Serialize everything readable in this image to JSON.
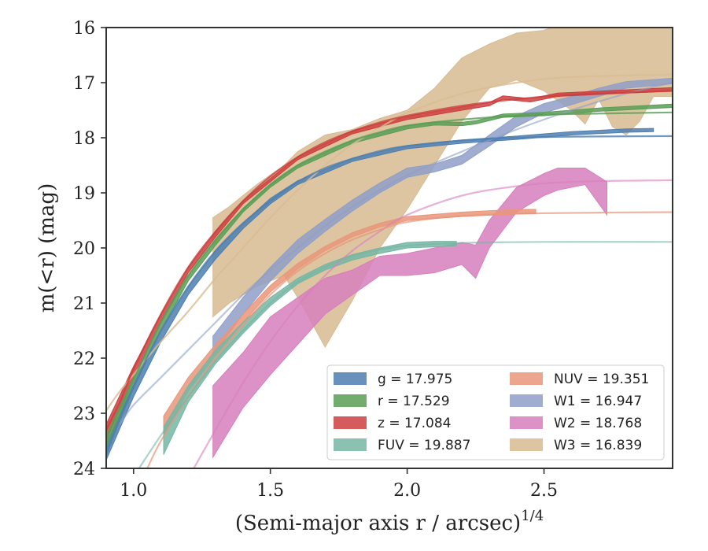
{
  "chart_data": {
    "type": "line",
    "xlabel": "(Semi-major axis r / arcsec)",
    "xlabel_superscript": "1/4",
    "ylabel": "m(<r) (mag)",
    "xlim": [
      0.9,
      2.97
    ],
    "ylim": [
      24,
      16
    ],
    "y_inverted": true,
    "grid": false,
    "legend_position": "lower-right",
    "x_ticks": [
      1.0,
      1.5,
      2.0,
      2.5
    ],
    "x_tick_labels": [
      "1.0",
      "1.5",
      "2.0",
      "2.5"
    ],
    "y_ticks": [
      16,
      17,
      18,
      19,
      20,
      21,
      22,
      23,
      24
    ],
    "y_tick_labels": [
      "16",
      "17",
      "18",
      "19",
      "20",
      "21",
      "22",
      "23",
      "24"
    ],
    "series": [
      {
        "name": "g",
        "legend": "g = 17.975",
        "color": "#4e7fb0",
        "model_alpha": 0.8,
        "model": [
          [
            0.9,
            23.75
          ],
          [
            0.95,
            23.1
          ],
          [
            1.0,
            22.5
          ],
          [
            1.1,
            21.5
          ],
          [
            1.2,
            20.7
          ],
          [
            1.3,
            20.05
          ],
          [
            1.4,
            19.55
          ],
          [
            1.5,
            19.15
          ],
          [
            1.6,
            18.8
          ],
          [
            1.7,
            18.55
          ],
          [
            1.8,
            18.38
          ],
          [
            1.9,
            18.24
          ],
          [
            2.0,
            18.15
          ],
          [
            2.2,
            18.05
          ],
          [
            2.4,
            18.0
          ],
          [
            2.6,
            17.98
          ],
          [
            2.97,
            17.97
          ]
        ],
        "data_band": [
          [
            0.9,
            23.85,
            23.55
          ],
          [
            1.0,
            22.7,
            22.5
          ],
          [
            1.1,
            21.7,
            21.5
          ],
          [
            1.2,
            20.85,
            20.7
          ],
          [
            1.3,
            20.2,
            20.05
          ],
          [
            1.4,
            19.65,
            19.55
          ],
          [
            1.5,
            19.2,
            19.1
          ],
          [
            1.6,
            18.85,
            18.78
          ],
          [
            1.8,
            18.43,
            18.37
          ],
          [
            2.0,
            18.2,
            18.14
          ],
          [
            2.2,
            18.1,
            18.04
          ],
          [
            2.4,
            18.03,
            17.97
          ],
          [
            2.6,
            17.95,
            17.89
          ],
          [
            2.8,
            17.9,
            17.84
          ],
          [
            2.9,
            17.89,
            17.83
          ]
        ]
      },
      {
        "name": "r",
        "legend": "r = 17.529",
        "color": "#5a9e56",
        "model_alpha": 0.8,
        "model": [
          [
            0.9,
            23.6
          ],
          [
            0.95,
            23.0
          ],
          [
            1.0,
            22.4
          ],
          [
            1.1,
            21.35
          ],
          [
            1.2,
            20.5
          ],
          [
            1.3,
            19.85
          ],
          [
            1.4,
            19.3
          ],
          [
            1.5,
            18.85
          ],
          [
            1.6,
            18.5
          ],
          [
            1.7,
            18.25
          ],
          [
            1.8,
            18.05
          ],
          [
            1.9,
            17.9
          ],
          [
            2.0,
            17.78
          ],
          [
            2.2,
            17.67
          ],
          [
            2.4,
            17.6
          ],
          [
            2.6,
            17.57
          ],
          [
            2.97,
            17.54
          ]
        ],
        "data_band": [
          [
            0.9,
            23.7,
            23.4
          ],
          [
            1.0,
            22.55,
            22.35
          ],
          [
            1.1,
            21.5,
            21.35
          ],
          [
            1.2,
            20.6,
            20.5
          ],
          [
            1.3,
            19.95,
            19.85
          ],
          [
            1.4,
            19.35,
            19.28
          ],
          [
            1.5,
            18.9,
            18.84
          ],
          [
            1.6,
            18.55,
            18.49
          ],
          [
            1.8,
            18.1,
            18.04
          ],
          [
            2.0,
            17.84,
            17.78
          ],
          [
            2.1,
            17.77,
            17.71
          ],
          [
            2.2,
            17.78,
            17.72
          ],
          [
            2.25,
            17.75,
            17.69
          ],
          [
            2.35,
            17.63,
            17.57
          ],
          [
            2.5,
            17.6,
            17.54
          ],
          [
            2.7,
            17.52,
            17.46
          ],
          [
            2.97,
            17.45,
            17.39
          ]
        ]
      },
      {
        "name": "z",
        "legend": "z = 17.084",
        "color": "#cc3f3f",
        "model_alpha": 0.8,
        "model": [
          [
            0.9,
            23.3
          ],
          [
            0.95,
            22.8
          ],
          [
            1.0,
            22.2
          ],
          [
            1.1,
            21.2
          ],
          [
            1.2,
            20.35
          ],
          [
            1.3,
            19.7
          ],
          [
            1.4,
            19.15
          ],
          [
            1.5,
            18.7
          ],
          [
            1.6,
            18.35
          ],
          [
            1.7,
            18.08
          ],
          [
            1.8,
            17.88
          ],
          [
            1.9,
            17.72
          ],
          [
            2.0,
            17.6
          ],
          [
            2.2,
            17.42
          ],
          [
            2.4,
            17.3
          ],
          [
            2.6,
            17.22
          ],
          [
            2.97,
            17.15
          ]
        ],
        "data_band": [
          [
            0.9,
            23.5,
            23.2
          ],
          [
            1.0,
            22.35,
            22.15
          ],
          [
            1.1,
            21.35,
            21.2
          ],
          [
            1.2,
            20.45,
            20.35
          ],
          [
            1.3,
            19.8,
            19.7
          ],
          [
            1.4,
            19.2,
            19.14
          ],
          [
            1.6,
            18.4,
            18.34
          ],
          [
            1.8,
            17.93,
            17.87
          ],
          [
            2.0,
            17.67,
            17.61
          ],
          [
            2.2,
            17.5,
            17.44
          ],
          [
            2.3,
            17.42,
            17.36
          ],
          [
            2.35,
            17.3,
            17.24
          ],
          [
            2.45,
            17.35,
            17.29
          ],
          [
            2.55,
            17.25,
            17.19
          ],
          [
            2.97,
            17.15,
            17.09
          ]
        ]
      },
      {
        "name": "FUV",
        "legend": "FUV = 19.887",
        "color": "#76b6a3",
        "model_alpha": 0.6,
        "model": [
          [
            1.02,
            24.0
          ],
          [
            1.1,
            23.4
          ],
          [
            1.2,
            22.7
          ],
          [
            1.3,
            22.05
          ],
          [
            1.4,
            21.5
          ],
          [
            1.5,
            21.0
          ],
          [
            1.6,
            20.62
          ],
          [
            1.7,
            20.35
          ],
          [
            1.8,
            20.15
          ],
          [
            1.9,
            20.03
          ],
          [
            2.0,
            19.96
          ],
          [
            2.2,
            19.91
          ],
          [
            2.5,
            19.89
          ],
          [
            2.97,
            19.89
          ]
        ],
        "data_band": [
          [
            1.11,
            23.75,
            23.25
          ],
          [
            1.2,
            22.8,
            22.5
          ],
          [
            1.3,
            22.1,
            21.85
          ],
          [
            1.4,
            21.55,
            21.35
          ],
          [
            1.5,
            21.05,
            20.9
          ],
          [
            1.6,
            20.65,
            20.55
          ],
          [
            1.7,
            20.4,
            20.3
          ],
          [
            1.8,
            20.22,
            20.12
          ],
          [
            1.9,
            20.1,
            20.0
          ],
          [
            2.0,
            20.0,
            19.9
          ],
          [
            2.1,
            19.98,
            19.88
          ],
          [
            2.18,
            19.96,
            19.88
          ]
        ]
      },
      {
        "name": "NUV",
        "legend": "NUV = 19.351",
        "color": "#e9967a",
        "model_alpha": 0.7,
        "model": [
          [
            1.05,
            24.0
          ],
          [
            1.1,
            23.5
          ],
          [
            1.2,
            22.7
          ],
          [
            1.3,
            22.0
          ],
          [
            1.4,
            21.4
          ],
          [
            1.5,
            20.85
          ],
          [
            1.6,
            20.42
          ],
          [
            1.7,
            20.1
          ],
          [
            1.8,
            19.85
          ],
          [
            1.9,
            19.67
          ],
          [
            2.0,
            19.53
          ],
          [
            2.2,
            19.42
          ],
          [
            2.5,
            19.37
          ],
          [
            2.97,
            19.35
          ]
        ],
        "data_band": [
          [
            1.11,
            23.4,
            23.05
          ],
          [
            1.2,
            22.6,
            22.35
          ],
          [
            1.3,
            21.95,
            21.75
          ],
          [
            1.4,
            21.35,
            21.2
          ],
          [
            1.5,
            20.8,
            20.68
          ],
          [
            1.6,
            20.38,
            20.28
          ],
          [
            1.7,
            20.05,
            19.97
          ],
          [
            1.8,
            19.8,
            19.72
          ],
          [
            1.9,
            19.62,
            19.55
          ],
          [
            2.0,
            19.5,
            19.43
          ],
          [
            2.2,
            19.43,
            19.35
          ],
          [
            2.4,
            19.38,
            19.3
          ],
          [
            2.47,
            19.38,
            19.3
          ]
        ]
      },
      {
        "name": "W1",
        "legend": "W1 = 16.947",
        "color": "#8f9fc8",
        "model_alpha": 0.6,
        "model": [
          [
            0.95,
            23.2
          ],
          [
            1.0,
            22.85
          ],
          [
            1.1,
            22.35
          ],
          [
            1.2,
            21.85
          ],
          [
            1.3,
            21.35
          ],
          [
            1.4,
            20.85
          ],
          [
            1.5,
            20.4
          ],
          [
            1.6,
            20.0
          ],
          [
            1.7,
            19.6
          ],
          [
            1.8,
            19.25
          ],
          [
            1.9,
            18.95
          ],
          [
            2.0,
            18.68
          ],
          [
            2.2,
            18.25
          ],
          [
            2.4,
            17.85
          ],
          [
            2.6,
            17.5
          ],
          [
            2.8,
            17.2
          ],
          [
            2.97,
            17.0
          ]
        ],
        "data_band": [
          [
            1.29,
            21.95,
            21.6
          ],
          [
            1.4,
            21.2,
            20.9
          ],
          [
            1.5,
            20.6,
            20.35
          ],
          [
            1.6,
            20.1,
            19.85
          ],
          [
            1.7,
            19.7,
            19.48
          ],
          [
            1.8,
            19.33,
            19.13
          ],
          [
            1.9,
            19.0,
            18.82
          ],
          [
            2.0,
            18.72,
            18.55
          ],
          [
            2.1,
            18.62,
            18.48
          ],
          [
            2.2,
            18.48,
            18.32
          ],
          [
            2.3,
            18.15,
            17.95
          ],
          [
            2.4,
            17.8,
            17.6
          ],
          [
            2.5,
            17.55,
            17.38
          ],
          [
            2.6,
            17.4,
            17.25
          ],
          [
            2.7,
            17.25,
            17.1
          ],
          [
            2.8,
            17.1,
            16.98
          ],
          [
            2.97,
            17.02,
            16.92
          ]
        ]
      },
      {
        "name": "W2",
        "legend": "W2 = 18.768",
        "color": "#d77fbd",
        "model_alpha": 0.6,
        "model": [
          [
            1.22,
            24.0
          ],
          [
            1.3,
            23.3
          ],
          [
            1.4,
            22.45
          ],
          [
            1.5,
            21.7
          ],
          [
            1.6,
            21.05
          ],
          [
            1.7,
            20.5
          ],
          [
            1.8,
            20.05
          ],
          [
            1.9,
            19.7
          ],
          [
            2.0,
            19.4
          ],
          [
            2.2,
            19.05
          ],
          [
            2.4,
            18.88
          ],
          [
            2.6,
            18.8
          ],
          [
            2.97,
            18.77
          ]
        ],
        "data_band": [
          [
            1.29,
            23.8,
            22.5
          ],
          [
            1.4,
            22.9,
            21.9
          ],
          [
            1.5,
            22.3,
            21.25
          ],
          [
            1.6,
            21.75,
            20.9
          ],
          [
            1.7,
            21.2,
            20.55
          ],
          [
            1.8,
            20.85,
            20.4
          ],
          [
            1.9,
            20.5,
            20.15
          ],
          [
            2.0,
            20.5,
            20.1
          ],
          [
            2.1,
            20.45,
            20.0
          ],
          [
            2.2,
            20.3,
            19.9
          ],
          [
            2.25,
            20.55,
            19.95
          ],
          [
            2.3,
            20.0,
            19.5
          ],
          [
            2.4,
            19.35,
            18.9
          ],
          [
            2.5,
            19.05,
            18.65
          ],
          [
            2.55,
            18.95,
            18.55
          ],
          [
            2.65,
            18.85,
            18.55
          ],
          [
            2.73,
            19.4,
            18.8
          ]
        ]
      },
      {
        "name": "W3",
        "legend": "W3 = 16.839",
        "color": "#d8bb92",
        "model_alpha": 0.8,
        "model": [
          [
            0.9,
            22.95
          ],
          [
            0.95,
            22.6
          ],
          [
            1.0,
            22.3
          ],
          [
            1.1,
            21.7
          ],
          [
            1.2,
            21.15
          ],
          [
            1.3,
            20.55
          ],
          [
            1.4,
            20.0
          ],
          [
            1.5,
            19.45
          ],
          [
            1.6,
            18.95
          ],
          [
            1.7,
            18.5
          ],
          [
            1.8,
            18.12
          ],
          [
            1.9,
            17.82
          ],
          [
            2.0,
            17.55
          ],
          [
            2.2,
            17.2
          ],
          [
            2.4,
            17.0
          ],
          [
            2.6,
            16.9
          ],
          [
            2.97,
            16.85
          ]
        ],
        "data_band": [
          [
            1.29,
            21.25,
            19.45
          ],
          [
            1.35,
            21.0,
            19.25
          ],
          [
            1.45,
            20.7,
            18.85
          ],
          [
            1.55,
            20.5,
            18.5
          ],
          [
            1.6,
            20.9,
            18.25
          ],
          [
            1.7,
            21.8,
            17.95
          ],
          [
            1.8,
            20.95,
            17.85
          ],
          [
            1.9,
            20.0,
            17.65
          ],
          [
            2.0,
            19.3,
            17.5
          ],
          [
            2.1,
            18.5,
            17.1
          ],
          [
            2.2,
            17.7,
            16.55
          ],
          [
            2.3,
            17.1,
            16.3
          ],
          [
            2.4,
            16.95,
            16.1
          ],
          [
            2.5,
            17.15,
            16.05
          ],
          [
            2.6,
            17.5,
            15.85
          ],
          [
            2.65,
            17.75,
            15.9
          ],
          [
            2.7,
            17.3,
            15.95
          ],
          [
            2.75,
            17.8,
            15.85
          ],
          [
            2.8,
            17.95,
            15.75
          ],
          [
            2.85,
            17.7,
            15.7
          ],
          [
            2.9,
            17.25,
            15.6
          ],
          [
            2.97,
            17.25,
            15.6
          ]
        ]
      }
    ]
  }
}
